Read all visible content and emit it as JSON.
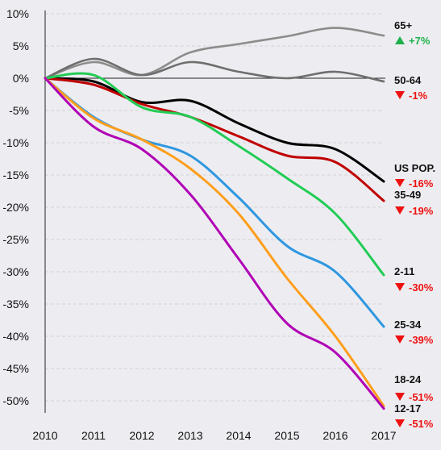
{
  "chart_data": {
    "type": "line",
    "title": "",
    "xlabel": "",
    "ylabel": "",
    "x": [
      2010,
      2011,
      2012,
      2013,
      2014,
      2015,
      2016,
      2017
    ],
    "x_ticks": [
      "2010",
      "2011",
      "2012",
      "2013",
      "2014",
      "2015",
      "2016",
      "2017"
    ],
    "y_ticks": [
      "10%",
      "5%",
      "0%",
      "-5%",
      "-10%",
      "-15%",
      "-20%",
      "-25%",
      "-30%",
      "-35%",
      "-40%",
      "-45%",
      "-50%"
    ],
    "ylim": [
      -52,
      10
    ],
    "grid": "horizontal-dashed",
    "series": [
      {
        "name": "65+",
        "change": "+7%",
        "direction": "up",
        "color": "#8c8c8c",
        "label_color": "#1db14b",
        "values": [
          0,
          2.5,
          0.5,
          4,
          5.3,
          6.5,
          7.8,
          6.6
        ]
      },
      {
        "name": "50-64",
        "change": "-1%",
        "direction": "down",
        "color": "#6e6e6e",
        "label_color": "#ee1111",
        "values": [
          0,
          3,
          0.5,
          2.5,
          1,
          0,
          1,
          -0.5
        ]
      },
      {
        "name": "US POP.",
        "change": "-16%",
        "direction": "down",
        "color": "#000000",
        "label_color": "#ee1111",
        "values": [
          0,
          -0.5,
          -3.7,
          -3.5,
          -7,
          -10,
          -11,
          -16
        ]
      },
      {
        "name": "35-49",
        "change": "-19%",
        "direction": "down",
        "color": "#c00000",
        "label_color": "#ee1111",
        "values": [
          0,
          -1,
          -4,
          -6,
          -9,
          -12,
          -13,
          -19
        ]
      },
      {
        "name": "2-11",
        "change": "-30%",
        "direction": "down",
        "color": "#22cc55",
        "label_color": "#ee1111",
        "values": [
          0,
          0.5,
          -4.5,
          -6,
          -10.5,
          -15.5,
          -21,
          -30.5
        ]
      },
      {
        "name": "25-34",
        "change": "-39%",
        "direction": "down",
        "color": "#2e97e0",
        "label_color": "#ee1111",
        "values": [
          0,
          -6,
          -9.5,
          -12,
          -18.5,
          -26,
          -30,
          -38.5
        ]
      },
      {
        "name": "18-24",
        "change": "-51%",
        "direction": "down",
        "color": "#ff9e1b",
        "label_color": "#ee1111",
        "values": [
          0,
          -6.2,
          -9.5,
          -14,
          -21,
          -31,
          -40,
          -50.8
        ]
      },
      {
        "name": "12-17",
        "change": "-51%",
        "direction": "down",
        "color": "#b000b5",
        "label_color": "#ee1111",
        "values": [
          0,
          -7.5,
          -11,
          -18,
          -28,
          -38,
          -42.5,
          -51.2
        ]
      }
    ]
  },
  "labels": {
    "65+": {
      "name": "65+",
      "change": "+7%"
    },
    "50-64": {
      "name": "50-64",
      "change": "-1%"
    },
    "us": {
      "name": "US POP.",
      "change": "-16%"
    },
    "35-49": {
      "name": "35-49",
      "change": "-19%"
    },
    "2-11": {
      "name": "2-11",
      "change": "-30%"
    },
    "25-34": {
      "name": "25-34",
      "change": "-39%"
    },
    "18-24": {
      "name": "18-24",
      "change": "-51%"
    },
    "12-17": {
      "name": "12-17",
      "change": "-51%"
    }
  }
}
